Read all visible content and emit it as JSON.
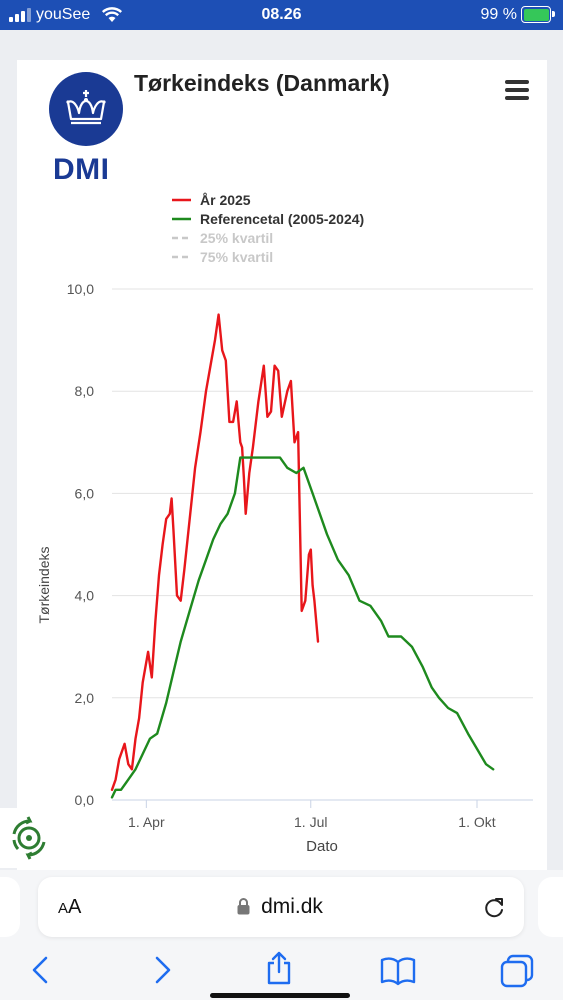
{
  "status_bar": {
    "carrier": "youSee",
    "time": "08.26",
    "battery": "99 %"
  },
  "header": {
    "logo_text": "DMI",
    "title": "Tørkeindeks (Danmark)",
    "menu_icon": "hamburger-menu-icon"
  },
  "colors": {
    "brand": "#1a3a94",
    "series_2025": "#e8161b",
    "series_reference": "#1e8a1e",
    "legend_inactive": "#c8c8c8"
  },
  "chart_data": {
    "type": "line",
    "title": "",
    "xlabel": "Dato",
    "ylabel": "Tørkeindeks",
    "ylim": [
      0,
      10
    ],
    "y_ticks": [
      "0,0",
      "2,0",
      "4,0",
      "6,0",
      "8,0",
      "10,0"
    ],
    "x_domain_days": [
      78,
      1.4,
      1.2,
      0.5,
      0.4,
      0.1
    ],
    "x_range": [
      "2025-03-13",
      "2025-11-01"
    ],
    "x_ticks": [
      {
        "date": "2025-04-01",
        "label": "1. Apr"
      },
      {
        "date": "2025-07-01",
        "label": "1. Jul"
      },
      {
        "date": "2025-10-01",
        "label": "1. Okt"
      }
    ],
    "legend": [
      {
        "label": "År 2025",
        "style": "solid",
        "active": true
      },
      {
        "label": "Referencetal (2005-2024)",
        "style": "solid",
        "active": true
      },
      {
        "label": "25% kvartil",
        "style": "dashed",
        "active": false
      },
      {
        "label": "75% kvartil",
        "style": "dashed",
        "active": false
      }
    ],
    "series": [
      {
        "name": "År 2025",
        "color": "#e8161b",
        "points": [
          [
            "2025-03-13",
            0.2
          ],
          [
            "2025-03-15",
            0.4
          ],
          [
            "2025-03-17",
            0.8
          ],
          [
            "2025-03-20",
            1.1
          ],
          [
            "2025-03-22",
            0.7
          ],
          [
            "2025-03-24",
            0.6
          ],
          [
            "2025-03-26",
            1.2
          ],
          [
            "2025-03-28",
            1.6
          ],
          [
            "2025-03-30",
            2.3
          ],
          [
            "2025-04-02",
            2.9
          ],
          [
            "2025-04-04",
            2.4
          ],
          [
            "2025-04-06",
            3.5
          ],
          [
            "2025-04-08",
            4.4
          ],
          [
            "2025-04-10",
            5.0
          ],
          [
            "2025-04-12",
            5.5
          ],
          [
            "2025-04-14",
            5.6
          ],
          [
            "2025-04-15",
            5.9
          ],
          [
            "2025-04-16",
            5.3
          ],
          [
            "2025-04-18",
            4.0
          ],
          [
            "2025-04-20",
            3.9
          ],
          [
            "2025-04-22",
            4.5
          ],
          [
            "2025-04-25",
            5.5
          ],
          [
            "2025-04-28",
            6.5
          ],
          [
            "2025-05-01",
            7.2
          ],
          [
            "2025-05-04",
            8.0
          ],
          [
            "2025-05-07",
            8.6
          ],
          [
            "2025-05-09",
            9.0
          ],
          [
            "2025-05-11",
            9.5
          ],
          [
            "2025-05-13",
            8.8
          ],
          [
            "2025-05-15",
            8.6
          ],
          [
            "2025-05-17",
            7.4
          ],
          [
            "2025-05-19",
            7.4
          ],
          [
            "2025-05-21",
            7.8
          ],
          [
            "2025-05-23",
            7.0
          ],
          [
            "2025-05-24",
            6.9
          ],
          [
            "2025-05-25",
            6.3
          ],
          [
            "2025-05-26",
            5.6
          ],
          [
            "2025-05-28",
            6.4
          ],
          [
            "2025-05-30",
            6.9
          ],
          [
            "2025-06-02",
            7.8
          ],
          [
            "2025-06-05",
            8.5
          ],
          [
            "2025-06-07",
            7.5
          ],
          [
            "2025-06-09",
            7.6
          ],
          [
            "2025-06-11",
            8.5
          ],
          [
            "2025-06-13",
            8.4
          ],
          [
            "2025-06-15",
            7.5
          ],
          [
            "2025-06-18",
            8.0
          ],
          [
            "2025-06-20",
            8.2
          ],
          [
            "2025-06-22",
            7.0
          ],
          [
            "2025-06-24",
            7.2
          ],
          [
            "2025-06-26",
            3.7
          ],
          [
            "2025-06-28",
            3.9
          ],
          [
            "2025-06-30",
            4.8
          ],
          [
            "2025-07-01",
            4.9
          ],
          [
            "2025-07-02",
            4.2
          ],
          [
            "2025-07-03",
            3.9
          ],
          [
            "2025-07-05",
            3.1
          ]
        ]
      },
      {
        "name": "Referencetal (2005-2024)",
        "color": "#1e8a1e",
        "points": [
          [
            "2025-03-13",
            0.05
          ],
          [
            "2025-03-15",
            0.2
          ],
          [
            "2025-03-18",
            0.2
          ],
          [
            "2025-03-22",
            0.4
          ],
          [
            "2025-03-26",
            0.6
          ],
          [
            "2025-03-30",
            0.9
          ],
          [
            "2025-04-03",
            1.2
          ],
          [
            "2025-04-07",
            1.3
          ],
          [
            "2025-04-12",
            1.9
          ],
          [
            "2025-04-16",
            2.5
          ],
          [
            "2025-04-20",
            3.1
          ],
          [
            "2025-04-25",
            3.7
          ],
          [
            "2025-04-30",
            4.3
          ],
          [
            "2025-05-04",
            4.7
          ],
          [
            "2025-05-08",
            5.1
          ],
          [
            "2025-05-12",
            5.4
          ],
          [
            "2025-05-16",
            5.6
          ],
          [
            "2025-05-20",
            6.0
          ],
          [
            "2025-05-23",
            6.7
          ],
          [
            "2025-05-31",
            6.7
          ],
          [
            "2025-06-06",
            6.7
          ],
          [
            "2025-06-14",
            6.7
          ],
          [
            "2025-06-18",
            6.5
          ],
          [
            "2025-06-23",
            6.4
          ],
          [
            "2025-06-27",
            6.5
          ],
          [
            "2025-07-02",
            6.0
          ],
          [
            "2025-07-06",
            5.6
          ],
          [
            "2025-07-10",
            5.2
          ],
          [
            "2025-07-16",
            4.7
          ],
          [
            "2025-07-22",
            4.4
          ],
          [
            "2025-07-28",
            3.9
          ],
          [
            "2025-08-03",
            3.8
          ],
          [
            "2025-08-09",
            3.5
          ],
          [
            "2025-08-13",
            3.2
          ],
          [
            "2025-08-20",
            3.2
          ],
          [
            "2025-08-26",
            3.0
          ],
          [
            "2025-09-01",
            2.6
          ],
          [
            "2025-09-06",
            2.2
          ],
          [
            "2025-09-10",
            2.0
          ],
          [
            "2025-09-15",
            1.8
          ],
          [
            "2025-09-20",
            1.7
          ],
          [
            "2025-09-26",
            1.3
          ],
          [
            "2025-10-01",
            1.0
          ],
          [
            "2025-10-06",
            0.7
          ],
          [
            "2025-10-10",
            0.6
          ]
        ]
      }
    ]
  },
  "browser": {
    "text_size_label": "AA",
    "url": "dmi.dk"
  }
}
